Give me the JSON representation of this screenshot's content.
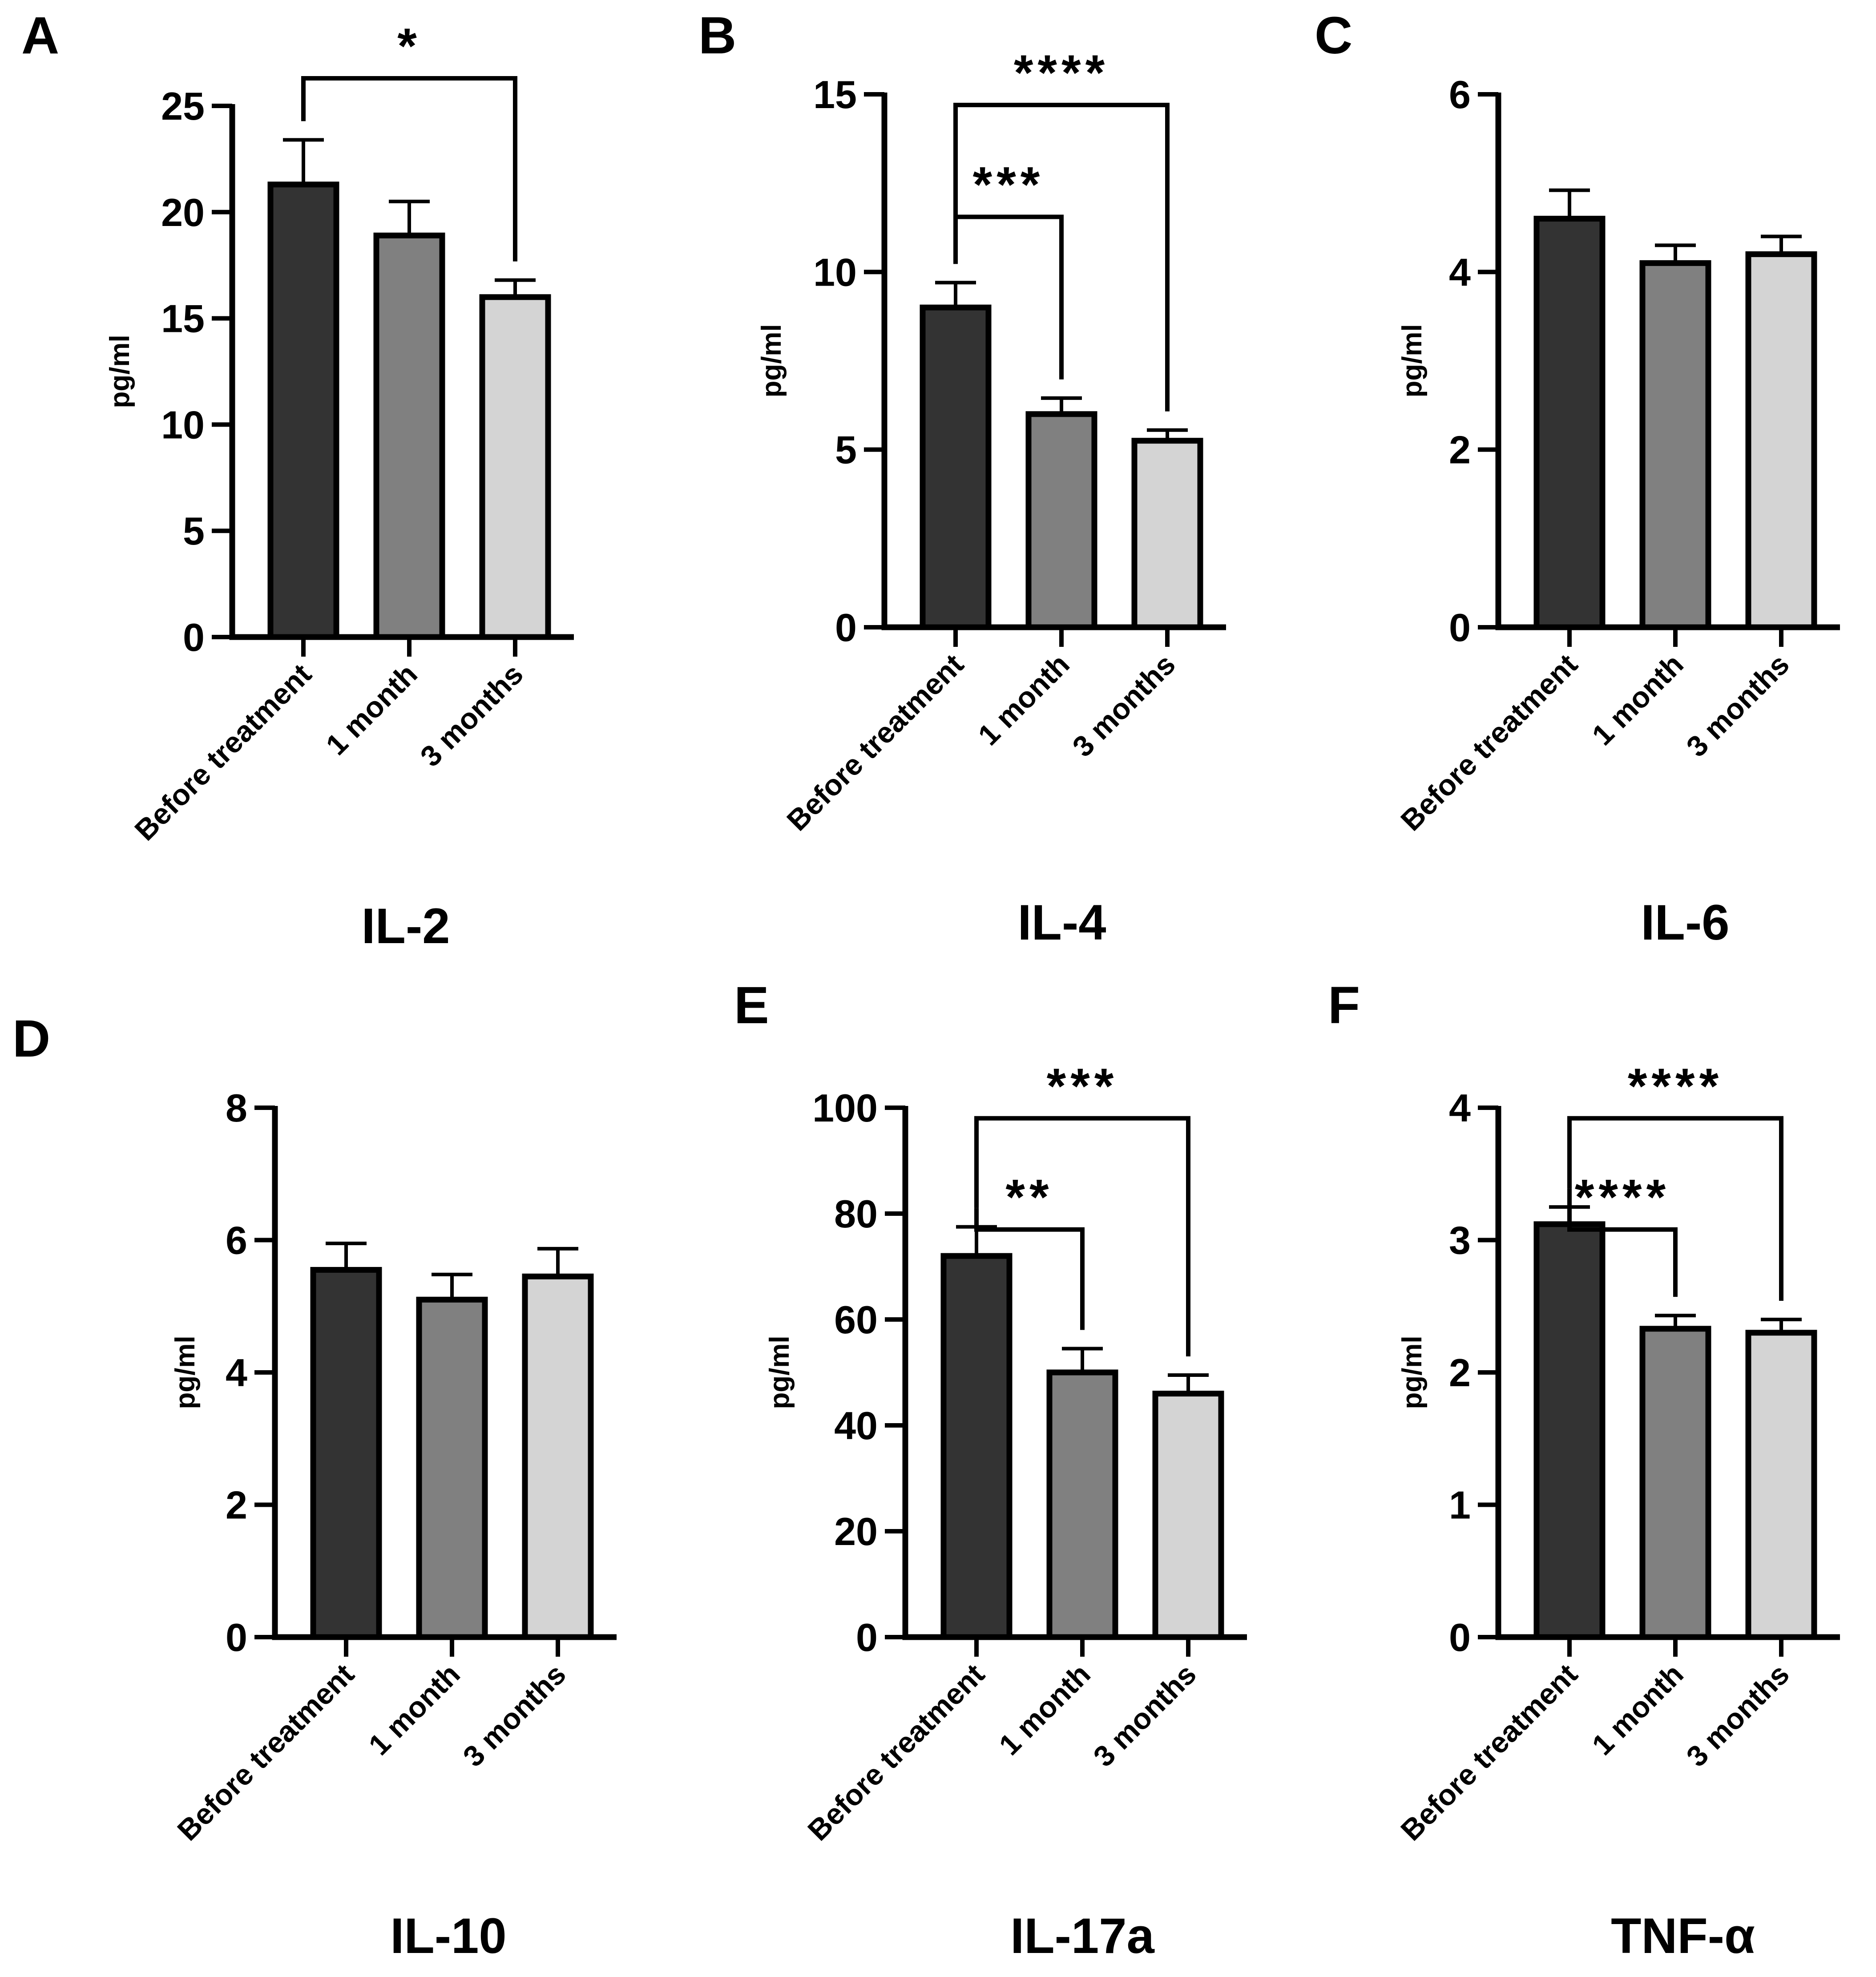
{
  "figure": {
    "categories": [
      "Before treatment",
      "1 month",
      "3 months"
    ],
    "bar_colors": [
      "#333333",
      "#808080",
      "#d4d4d4"
    ],
    "ylabel": "pg/ml"
  },
  "chart_data": [
    {
      "panel": "A",
      "title": "IL-2",
      "type": "bar",
      "categories": [
        "Before treatment",
        "1 month",
        "3 months"
      ],
      "values": [
        21.3,
        18.9,
        16.0
      ],
      "errors": [
        2.1,
        1.6,
        0.8
      ],
      "ylabel": "pg/ml",
      "ylim": [
        0,
        25
      ],
      "yticks": [
        "0",
        "5",
        "10",
        "15",
        "20",
        "25"
      ],
      "significance": [
        {
          "from": 0,
          "to": 2,
          "label": "*"
        }
      ]
    },
    {
      "panel": "B",
      "title": "IL-4",
      "type": "bar",
      "categories": [
        "Before treatment",
        "1 month",
        "3 months"
      ],
      "values": [
        9.0,
        6.0,
        5.25
      ],
      "errors": [
        0.7,
        0.45,
        0.3
      ],
      "ylabel": "pg/ml",
      "ylim": [
        0,
        15
      ],
      "yticks": [
        "0",
        "5",
        "10",
        "15"
      ],
      "significance": [
        {
          "from": 0,
          "to": 1,
          "label": "***"
        },
        {
          "from": 0,
          "to": 2,
          "label": "****"
        }
      ]
    },
    {
      "panel": "C",
      "title": "IL-6",
      "type": "bar",
      "categories": [
        "Before treatment",
        "1 month",
        "3 months"
      ],
      "values": [
        4.6,
        4.1,
        4.2
      ],
      "errors": [
        0.32,
        0.2,
        0.2
      ],
      "ylabel": "pg/ml",
      "ylim": [
        0,
        6
      ],
      "yticks": [
        "0",
        "2",
        "4",
        "6"
      ],
      "significance": []
    },
    {
      "panel": "D",
      "title": "IL-10",
      "type": "bar",
      "categories": [
        "Before treatment",
        "1 month",
        "3 months"
      ],
      "values": [
        5.55,
        5.1,
        5.45
      ],
      "errors": [
        0.4,
        0.38,
        0.42
      ],
      "ylabel": "pg/ml",
      "ylim": [
        0,
        8
      ],
      "yticks": [
        "0",
        "2",
        "4",
        "6",
        "8"
      ],
      "significance": []
    },
    {
      "panel": "E",
      "title": "IL-17a",
      "type": "bar",
      "categories": [
        "Before treatment",
        "1 month",
        "3 months"
      ],
      "values": [
        72,
        50,
        46
      ],
      "errors": [
        5.5,
        4.5,
        3.5
      ],
      "ylabel": "pg/ml",
      "ylim": [
        0,
        100
      ],
      "yticks": [
        "0",
        "20",
        "40",
        "60",
        "80",
        "100"
      ],
      "significance": [
        {
          "from": 0,
          "to": 1,
          "label": "**"
        },
        {
          "from": 0,
          "to": 2,
          "label": "***"
        }
      ]
    },
    {
      "panel": "F",
      "title": "TNF-α",
      "type": "bar",
      "categories": [
        "Before treatment",
        "1 month",
        "3 months"
      ],
      "values": [
        3.12,
        2.33,
        2.3
      ],
      "errors": [
        0.13,
        0.1,
        0.1
      ],
      "ylabel": "pg/ml",
      "ylim": [
        0,
        4
      ],
      "yticks": [
        "0",
        "1",
        "2",
        "3",
        "4"
      ],
      "significance": [
        {
          "from": 0,
          "to": 1,
          "label": "****"
        },
        {
          "from": 0,
          "to": 2,
          "label": "****"
        }
      ]
    }
  ]
}
